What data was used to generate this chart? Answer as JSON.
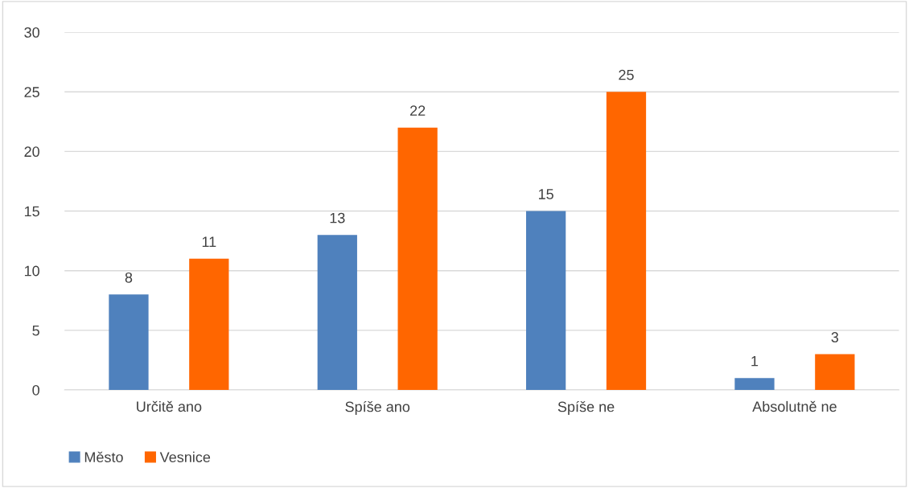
{
  "chart_data": {
    "type": "bar",
    "categories": [
      "Určitě ano",
      "Spíše ano",
      "Spíše ne",
      "Absolutně ne"
    ],
    "series": [
      {
        "name": "Město",
        "color": "#4f81bd",
        "values": [
          8,
          13,
          15,
          1
        ]
      },
      {
        "name": "Vesnice",
        "color": "#ff6600",
        "values": [
          11,
          22,
          25,
          3
        ]
      }
    ],
    "ylim": [
      0,
      30
    ],
    "yticks": [
      0,
      5,
      10,
      15,
      20,
      25,
      30
    ],
    "grid": "y",
    "legend": "bottom left",
    "data_labels": true
  }
}
